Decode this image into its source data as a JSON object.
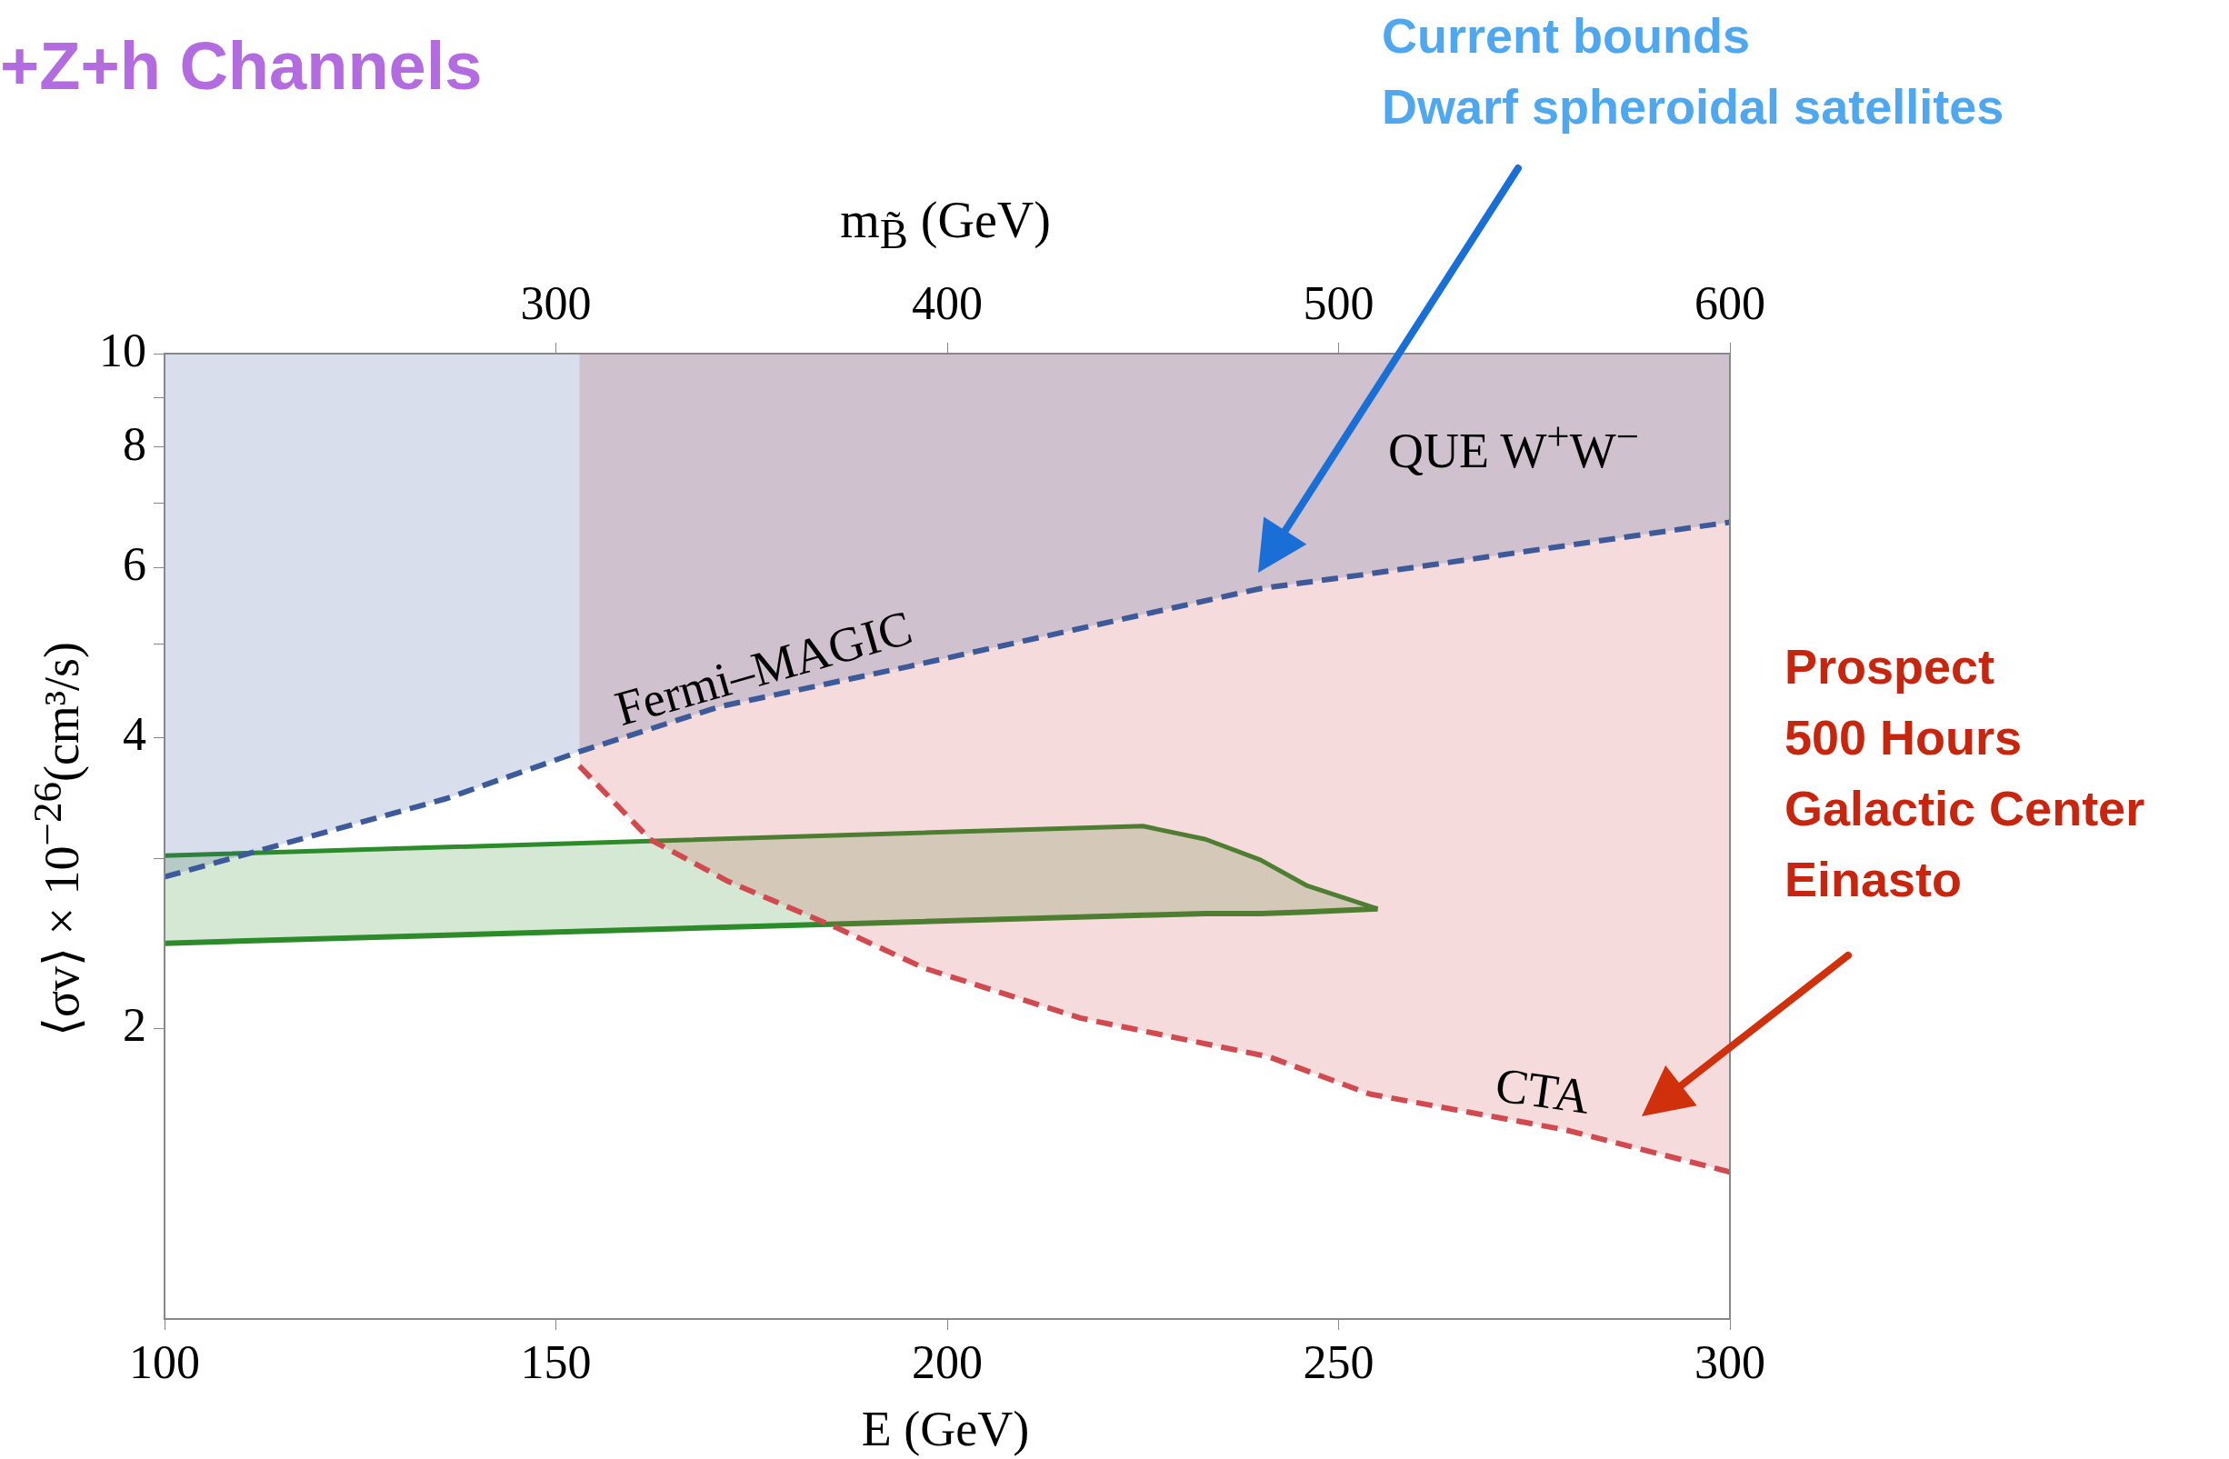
{
  "chart_data": {
    "type": "line",
    "title": "+Z+h Channels",
    "xlabel": "E (GeV)",
    "ylabel": "⟨σv⟩ × 10$^{−26}$(cm³/s)",
    "x2label": "m$_{B̃}$ (GeV)",
    "xlim": [
      100,
      300
    ],
    "xticks": [
      100,
      150,
      200,
      250,
      300
    ],
    "x2lim": [
      200,
      600
    ],
    "x2ticks": [
      300,
      400,
      500,
      600
    ],
    "ylim": [
      1,
      10
    ],
    "yticks": [
      {
        "value": 3,
        "label": null
      },
      2,
      4,
      {
        "value": 5,
        "label": null
      },
      6,
      {
        "value": 7,
        "label": null
      },
      8,
      {
        "value": 9,
        "label": null
      },
      10
    ],
    "log": "y",
    "grid": false,
    "legend": false,
    "marker": "none",
    "series": [
      {
        "color": "#3d5a9a",
        "line_style": "dashed",
        "x": [
          100,
          136,
          153,
          171,
          195,
          240,
          253,
          300
        ],
        "values": [
          2.87,
          3.46,
          3.87,
          4.31,
          4.74,
          5.71,
          5.9,
          6.69
        ],
        "lower": [
          2.87,
          3.46,
          3.87,
          4.31,
          4.74,
          5.71,
          5.9,
          6.69
        ],
        "upper": [
          10,
          10,
          10,
          10,
          10,
          10,
          10,
          10
        ]
      },
      {
        "color": "#d04a50",
        "line_style": "dashed",
        "x": [
          153,
          162,
          172,
          186,
          197,
          217,
          241,
          254,
          279,
          300
        ],
        "values": [
          3.74,
          3.14,
          2.84,
          2.54,
          2.31,
          2.05,
          1.87,
          1.71,
          1.57,
          1.42
        ],
        "lower": [
          3.74,
          3.14,
          2.84,
          2.54,
          2.31,
          2.05,
          1.87,
          1.71,
          1.57,
          1.42
        ],
        "upper": [
          10,
          10,
          10,
          10,
          10,
          10,
          10,
          10,
          10,
          10
        ]
      },
      {
        "color": "#2e8b2a",
        "line_style": "solid",
        "x": [
          100,
          225,
          233,
          240,
          246,
          255
        ],
        "values": [
          3.02,
          3.24,
          3.14,
          2.99,
          2.81,
          2.66
        ]
      },
      {
        "color": "#2e8b2a",
        "line_style": "solid",
        "x": [
          100,
          225,
          233,
          240,
          246,
          255
        ],
        "values": [
          2.45,
          2.62,
          2.63,
          2.63,
          2.64,
          2.66
        ],
        "lower": [
          2.45,
          2.62,
          2.63,
          2.63,
          2.64,
          2.66
        ],
        "upper": [
          3.02,
          3.24,
          3.14,
          2.99,
          2.81,
          2.66
        ]
      }
    ],
    "annotations": [
      "Fermi–MAGIC",
      "QUE W$^{+}$W$^{−}$",
      "CTA",
      "Current bounds\nDwarf spheroidal satellites",
      "Prospect\n500 Hours\nGalactic Center\nEinasto"
    ]
  }
}
